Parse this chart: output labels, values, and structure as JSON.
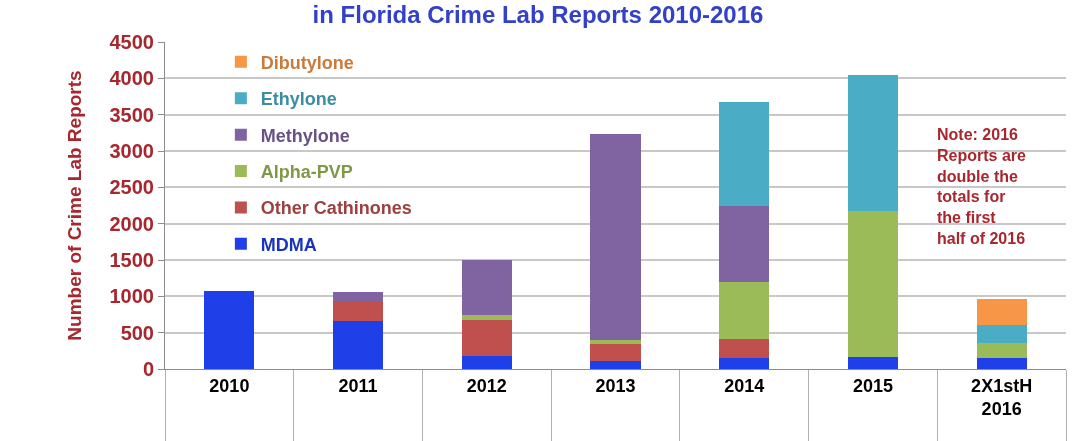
{
  "chart_data": {
    "type": "bar",
    "title": "in Florida Crime Lab Reports 2010-2016",
    "ylabel": "Number of Crime Lab Reports",
    "categories": [
      "2010",
      "2011",
      "2012",
      "2013",
      "2014",
      "2015",
      "2X1stH\n2016"
    ],
    "stacked": true,
    "series": [
      {
        "name": "MDMA",
        "color": "#1f3fe8",
        "values": [
          1080,
          660,
          180,
          110,
          150,
          170,
          150
        ]
      },
      {
        "name": "Other Cathinones",
        "color": "#c0504d",
        "values": [
          null,
          270,
          490,
          240,
          260,
          null,
          null
        ]
      },
      {
        "name": "Alpha-PVP",
        "color": "#9bbb59",
        "values": [
          null,
          null,
          80,
          50,
          790,
          2000,
          210
        ]
      },
      {
        "name": "Methylone",
        "color": "#8064a2",
        "values": [
          null,
          130,
          750,
          2840,
          1040,
          null,
          null
        ]
      },
      {
        "name": "Ethylone",
        "color": "#4bacc6",
        "values": [
          null,
          null,
          null,
          null,
          1440,
          1870,
          240
        ]
      },
      {
        "name": "Dibutylone",
        "color": "#f79646",
        "values": [
          null,
          null,
          null,
          null,
          null,
          null,
          360
        ]
      }
    ],
    "ylim": [
      0,
      4500
    ],
    "yticks": [
      0,
      500,
      1000,
      1500,
      2000,
      2500,
      3000,
      3500,
      4000,
      4500
    ],
    "grid": "y",
    "legend": "top left",
    "annotations": [
      "Note: 2016\nReports are\ndouble the\ntotals for\nthe first\nhalf of 2016"
    ]
  }
}
